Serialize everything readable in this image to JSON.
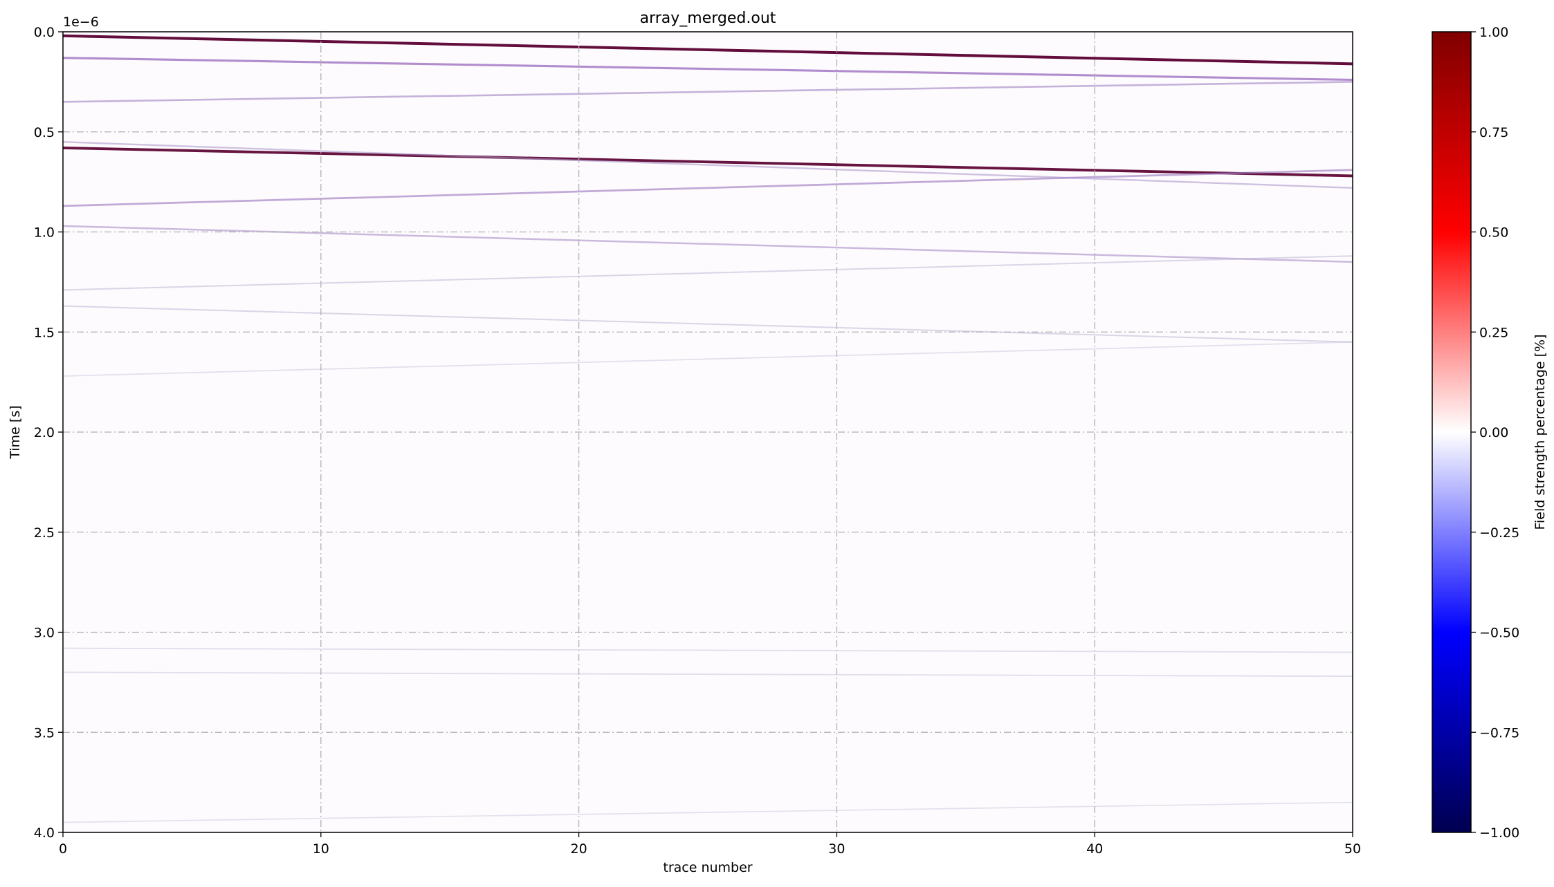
{
  "chart_data": {
    "type": "heatmap",
    "title": "array_merged.out",
    "xlabel": "trace number",
    "ylabel": "Time [s]",
    "y_offset_label": "1e−6",
    "xlim": [
      0,
      50
    ],
    "ylim": [
      4.0,
      0.0
    ],
    "y_scale_factor": 1e-06,
    "x_ticks": [
      0,
      10,
      20,
      30,
      40,
      50
    ],
    "x_tick_labels": [
      "0",
      "10",
      "20",
      "30",
      "40",
      "50"
    ],
    "y_ticks": [
      0.0,
      0.5,
      1.0,
      1.5,
      2.0,
      2.5,
      3.0,
      3.5,
      4.0
    ],
    "y_tick_labels": [
      "0.0",
      "0.5",
      "1.0",
      "1.5",
      "2.0",
      "2.5",
      "3.0",
      "3.5",
      "4.0"
    ],
    "grid": true,
    "colormap": "seismic",
    "colorbar": {
      "label": "Field strength percentage [%]",
      "range": [
        -1.0,
        1.0
      ],
      "ticks": [
        1.0,
        0.75,
        0.5,
        0.25,
        0.0,
        -0.25,
        -0.5,
        -0.75,
        -1.0
      ],
      "tick_labels": [
        "1.00",
        "0.75",
        "0.50",
        "0.25",
        "0.00",
        "−0.25",
        "−0.50",
        "−0.75",
        "−1.00"
      ],
      "colors": [
        "#000050",
        "#0000ff",
        "#ffffff",
        "#ff0000",
        "#800000"
      ]
    },
    "reflections": [
      {
        "t0": 0.02,
        "t1": 0.16,
        "amplitude": 1.0
      },
      {
        "t0": 0.13,
        "t1": 0.24,
        "amplitude": 0.65
      },
      {
        "t0": 0.35,
        "t1": 0.25,
        "amplitude": 0.45
      },
      {
        "t0": 0.58,
        "t1": 0.72,
        "amplitude": 0.95
      },
      {
        "t0": 0.55,
        "t1": 0.78,
        "amplitude": 0.35
      },
      {
        "t0": 0.87,
        "t1": 0.69,
        "amplitude": 0.5
      },
      {
        "t0": 0.97,
        "t1": 1.15,
        "amplitude": 0.4
      },
      {
        "t0": 1.29,
        "t1": 1.12,
        "amplitude": 0.2
      },
      {
        "t0": 1.37,
        "t1": 1.55,
        "amplitude": 0.2
      },
      {
        "t0": 1.72,
        "t1": 1.55,
        "amplitude": 0.1
      },
      {
        "t0": 3.08,
        "t1": 3.1,
        "amplitude": 0.12
      },
      {
        "t0": 3.2,
        "t1": 3.22,
        "amplitude": 0.12
      },
      {
        "t0": 3.95,
        "t1": 3.85,
        "amplitude": 0.08
      }
    ]
  }
}
